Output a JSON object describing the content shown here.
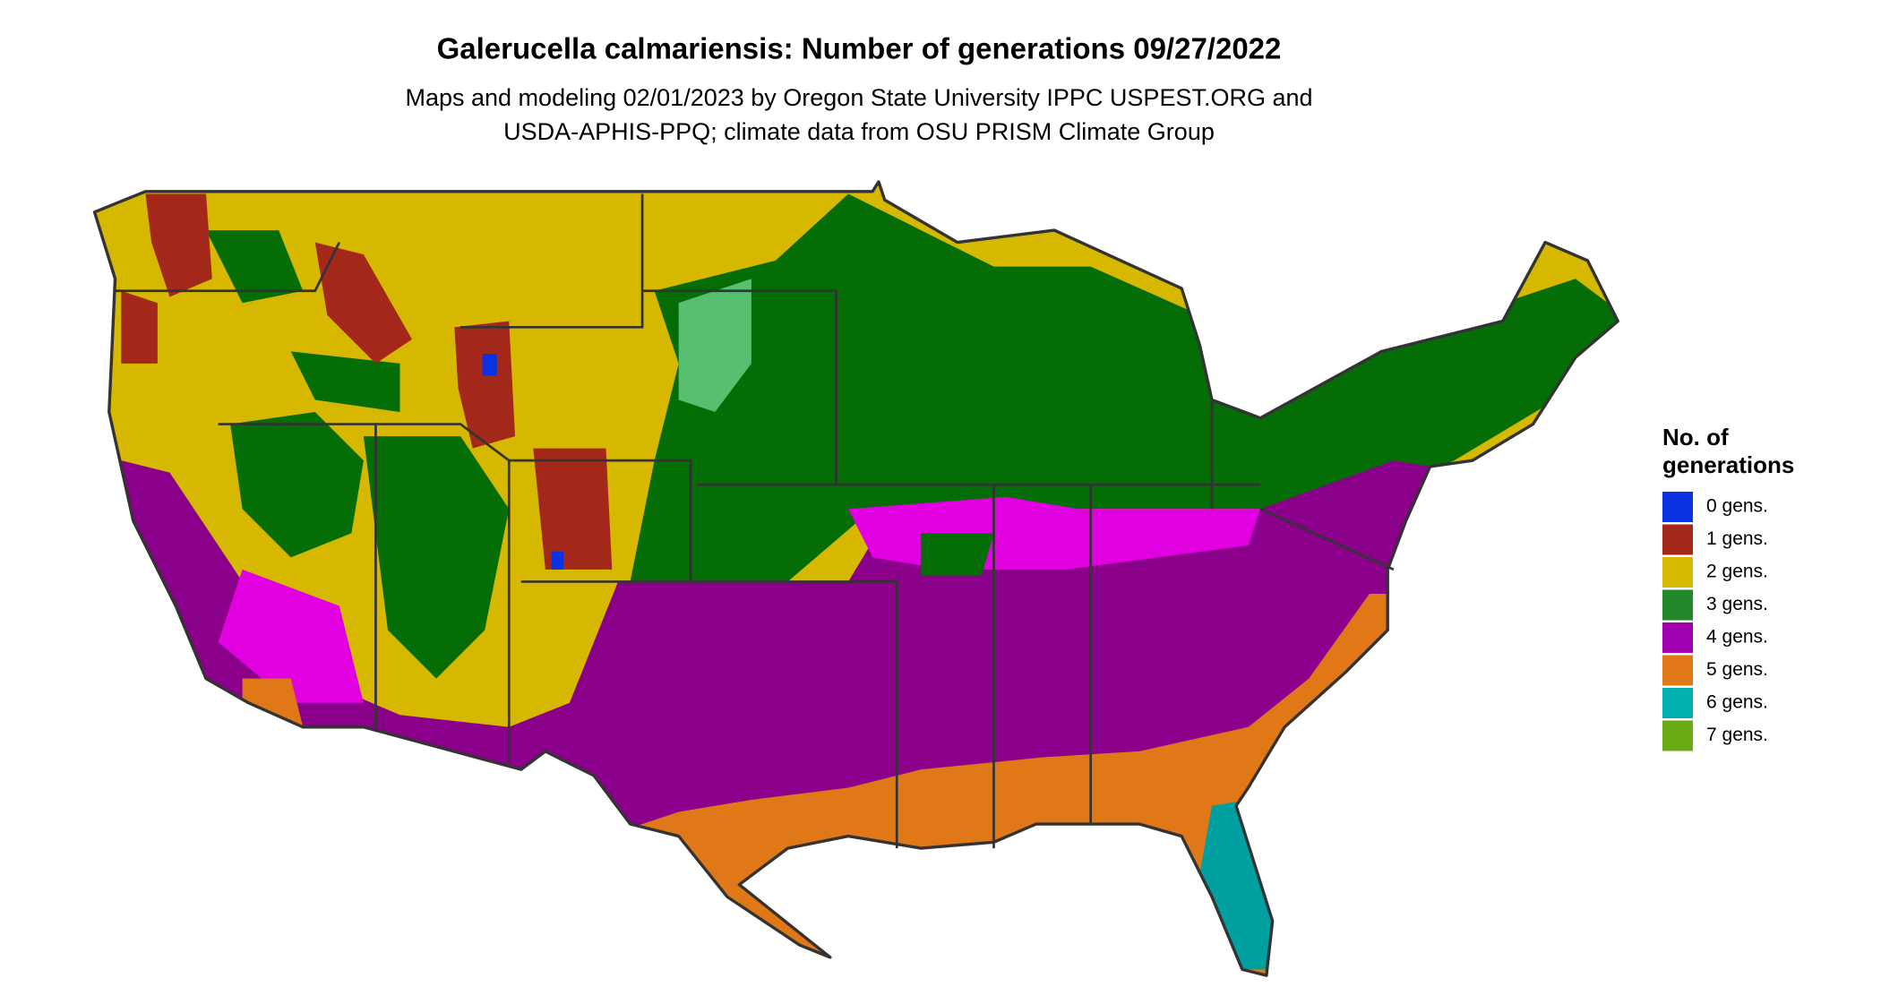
{
  "header": {
    "title": "Galerucella calmariensis: Number of generations 09/27/2022",
    "subtitle": [
      "Maps and modeling 02/01/2023 by Oregon State University IPPC USPEST.ORG and",
      "USDA-APHIS-PPQ; climate data from OSU PRISM Climate Group"
    ]
  },
  "legend": {
    "title": [
      "No. of",
      "generations"
    ],
    "items": [
      {
        "label": "0 gens.",
        "color": "#0a32e0"
      },
      {
        "label": "1 gens.",
        "color": "#a3281a"
      },
      {
        "label": "2 gens.",
        "color": "#d6b800"
      },
      {
        "label": "3 gens.",
        "color": "#23882a"
      },
      {
        "label": "4 gens.",
        "color": "#a000b0"
      },
      {
        "label": "5 gens.",
        "color": "#e07818"
      },
      {
        "label": "6 gens.",
        "color": "#00b0b0"
      },
      {
        "label": "7 gens.",
        "color": "#6aaa14"
      }
    ]
  }
}
